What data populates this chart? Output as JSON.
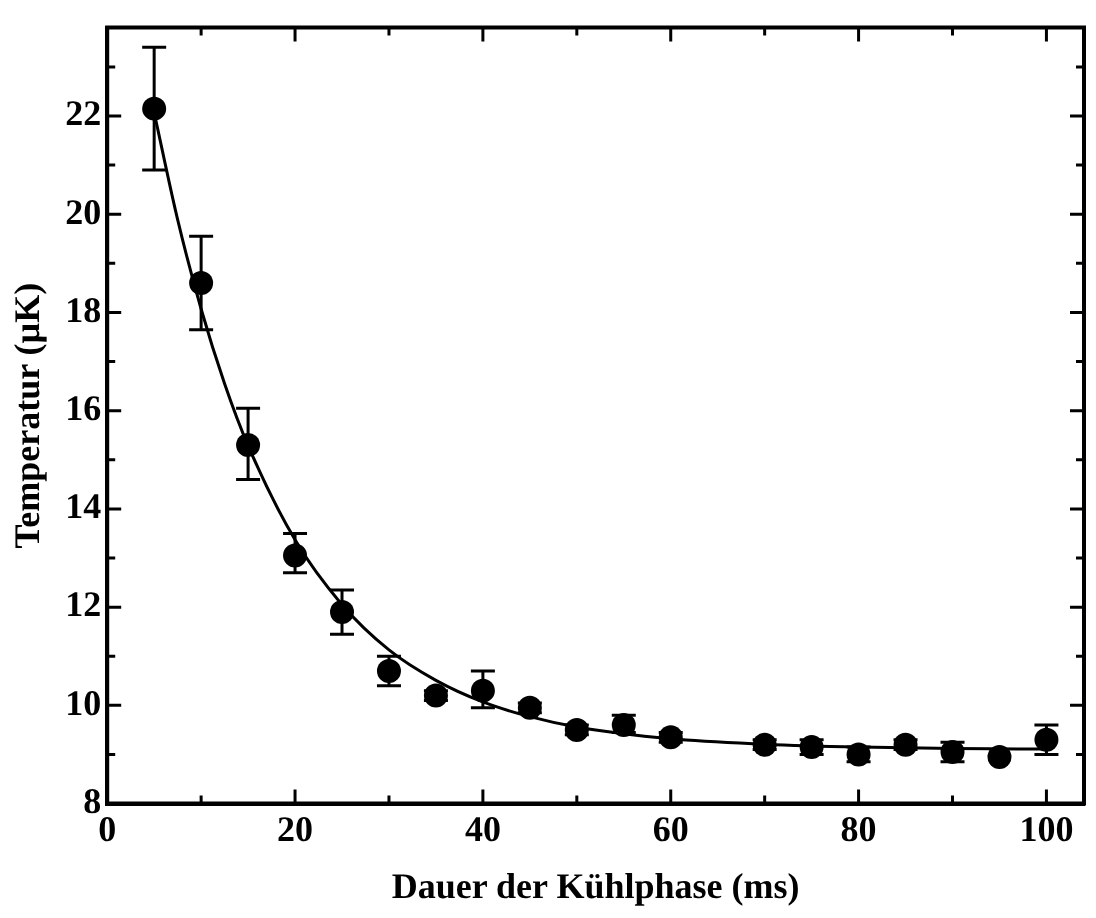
{
  "chart_data": {
    "type": "scatter",
    "xlabel": "Dauer der Kühlphase (ms)",
    "ylabel": "Temperatur (µK)",
    "xlim": [
      0,
      104
    ],
    "ylim": [
      8,
      23.8
    ],
    "xticks": [
      0,
      {
        "value": 10,
        "label": null
      },
      20,
      {
        "value": 30,
        "label": null
      },
      40,
      {
        "value": 50,
        "label": null
      },
      60,
      {
        "value": 70,
        "label": null
      },
      80,
      {
        "value": 90,
        "label": null
      },
      100
    ],
    "yticks": [
      8,
      {
        "value": 9,
        "label": null
      },
      10,
      {
        "value": 11,
        "label": null
      },
      12,
      {
        "value": 13,
        "label": null
      },
      14,
      {
        "value": 15,
        "label": null
      },
      16,
      {
        "value": 17,
        "label": null
      },
      18,
      {
        "value": 19,
        "label": null
      },
      20,
      {
        "value": 21,
        "label": null
      },
      22,
      {
        "value": 23,
        "label": null
      }
    ],
    "grid": false,
    "legend": false,
    "marker": "circle",
    "series": [
      {
        "color": "#000000",
        "x": [
          5,
          10,
          15,
          20,
          25,
          30,
          35,
          40,
          45,
          50,
          55,
          60,
          70,
          75,
          80,
          85,
          90,
          95,
          100
        ],
        "values": [
          22.15,
          18.6,
          15.3,
          13.05,
          11.9,
          10.7,
          10.2,
          10.3,
          9.95,
          9.5,
          9.6,
          9.35,
          9.2,
          9.15,
          9.0,
          9.2,
          9.05,
          8.95,
          9.3
        ],
        "errors": [
          [
            20.9,
            23.4
          ],
          [
            17.65,
            19.55
          ],
          [
            14.6,
            16.05
          ],
          [
            12.7,
            13.5
          ],
          [
            11.45,
            12.35
          ],
          [
            10.4,
            11.0
          ],
          [
            10.1,
            10.3
          ],
          [
            9.95,
            10.7
          ],
          [
            9.85,
            10.05
          ],
          [
            9.4,
            9.6
          ],
          [
            9.45,
            9.8
          ],
          [
            9.25,
            9.45
          ],
          [
            9.1,
            9.3
          ],
          [
            9.0,
            9.3
          ],
          [
            8.85,
            9.15
          ],
          [
            9.1,
            9.3
          ],
          [
            8.85,
            9.25
          ],
          null,
          [
            9.0,
            9.6
          ]
        ]
      },
      {
        "type": "line",
        "color": "#000000",
        "marker": "none",
        "x": [
          5,
          7.5,
          10,
          12.5,
          15,
          20,
          25,
          30,
          35,
          40,
          45,
          50,
          60,
          70,
          80,
          90,
          100
        ],
        "values": [
          22.07,
          19.89,
          18.07,
          16.55,
          15.29,
          13.37,
          12.05,
          11.13,
          10.51,
          10.07,
          9.77,
          9.56,
          9.32,
          9.21,
          9.15,
          9.12,
          9.11
        ]
      }
    ]
  }
}
